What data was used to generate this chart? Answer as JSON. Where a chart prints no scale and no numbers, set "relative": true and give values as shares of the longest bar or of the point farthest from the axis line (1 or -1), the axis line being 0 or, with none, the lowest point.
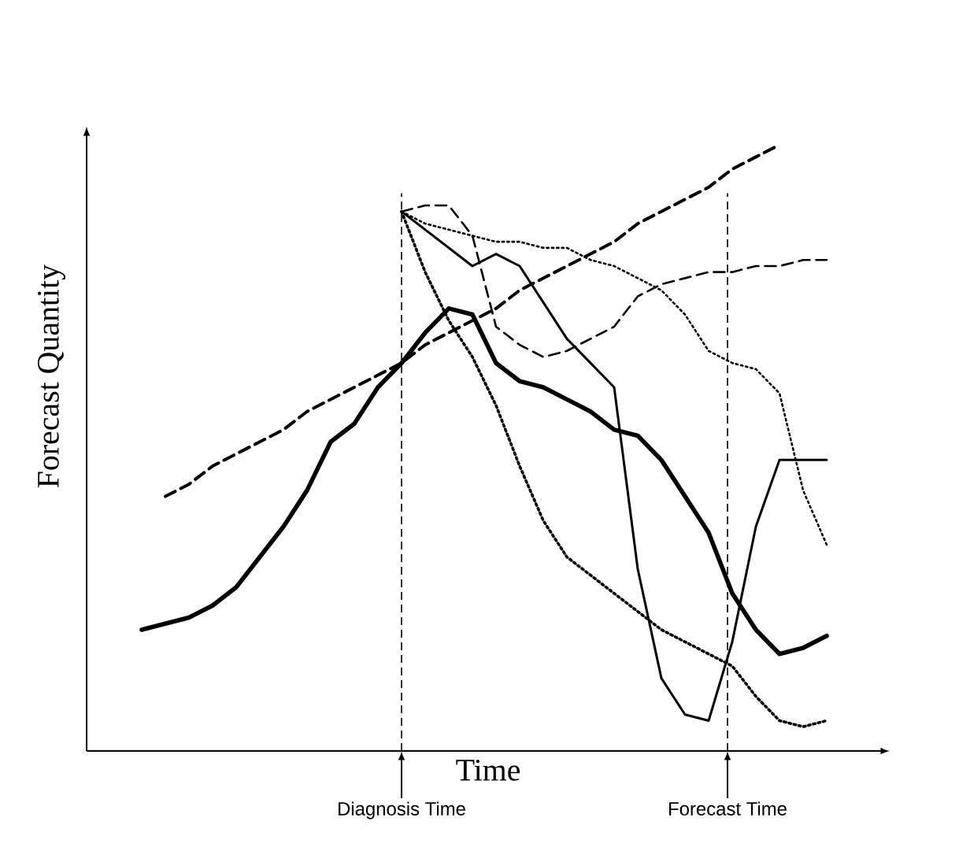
{
  "chart_data": {
    "type": "line",
    "relative": true,
    "xlabel": "Time",
    "ylabel": "Forecast Quantity",
    "tick_labels": false,
    "marker": "none",
    "categories": [
      null,
      null,
      null,
      null,
      null,
      null,
      null,
      null,
      null,
      null,
      null,
      null,
      null,
      null,
      null,
      null,
      null,
      null,
      null,
      null,
      null,
      null,
      null,
      null,
      null,
      null,
      null,
      null,
      null,
      null,
      null,
      null
    ],
    "series": [
      {
        "color": "#000000",
        "line_style": "solid",
        "values": [
          null,
          0.2,
          0.21,
          0.22,
          0.24,
          0.27,
          0.32,
          0.37,
          0.43,
          0.51,
          0.54,
          0.6,
          0.64,
          0.69,
          0.73,
          0.72,
          0.64,
          0.61,
          0.6,
          0.58,
          0.56,
          0.53,
          0.52,
          0.48,
          0.42,
          0.36,
          0.26,
          0.2,
          0.16,
          0.17,
          0.19,
          null
        ]
      },
      {
        "color": "#000000",
        "line_style": "dashed",
        "values": [
          null,
          null,
          0.42,
          0.44,
          0.47,
          0.49,
          0.51,
          0.53,
          0.56,
          0.58,
          0.6,
          0.62,
          0.64,
          0.67,
          0.69,
          0.71,
          0.73,
          0.76,
          0.78,
          0.8,
          0.82,
          0.84,
          0.87,
          0.89,
          0.91,
          0.93,
          0.96,
          0.98,
          1.0,
          null,
          null,
          null
        ]
      },
      {
        "color": "#000000",
        "line_style": "solid",
        "values": [
          null,
          null,
          null,
          null,
          null,
          null,
          null,
          null,
          null,
          null,
          null,
          null,
          0.89,
          0.86,
          0.83,
          0.8,
          0.82,
          0.8,
          0.74,
          0.68,
          0.64,
          0.6,
          0.3,
          0.12,
          0.06,
          0.05,
          0.18,
          0.37,
          0.48,
          0.48,
          0.48,
          null
        ]
      },
      {
        "color": "#000000",
        "line_style": "dotted",
        "values": [
          null,
          null,
          null,
          null,
          null,
          null,
          null,
          null,
          null,
          null,
          null,
          null,
          0.89,
          0.79,
          0.71,
          0.65,
          0.57,
          0.47,
          0.38,
          0.32,
          0.29,
          0.26,
          0.23,
          0.2,
          0.18,
          0.16,
          0.14,
          0.09,
          0.05,
          0.04,
          0.05,
          null
        ]
      },
      {
        "color": "#000000",
        "line_style": "dashed",
        "values": [
          null,
          null,
          null,
          null,
          null,
          null,
          null,
          null,
          null,
          null,
          null,
          null,
          0.89,
          0.9,
          0.9,
          0.85,
          0.7,
          0.67,
          0.65,
          0.66,
          0.68,
          0.7,
          0.75,
          0.77,
          0.78,
          0.79,
          0.79,
          0.8,
          0.8,
          0.81,
          0.81,
          null
        ]
      },
      {
        "color": "#000000",
        "line_style": "dotted",
        "values": [
          null,
          null,
          null,
          null,
          null,
          null,
          null,
          null,
          null,
          null,
          null,
          null,
          0.89,
          0.87,
          0.86,
          0.85,
          0.84,
          0.84,
          0.83,
          0.83,
          0.81,
          0.8,
          0.78,
          0.76,
          0.72,
          0.66,
          0.64,
          0.63,
          0.59,
          0.43,
          0.34,
          null
        ]
      }
    ],
    "annotations": [
      "Diagnosis Time",
      "Forecast Time"
    ]
  }
}
